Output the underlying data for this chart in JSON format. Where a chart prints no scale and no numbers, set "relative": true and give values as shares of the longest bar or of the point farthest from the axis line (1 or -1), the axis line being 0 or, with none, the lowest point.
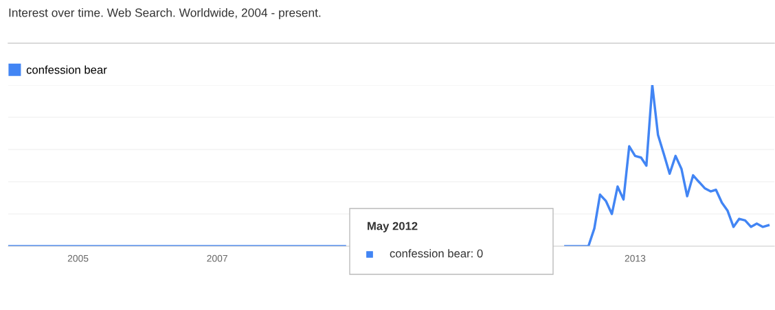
{
  "chart_data": {
    "type": "line",
    "title": "Interest over time. Web Search. Worldwide, 2004 - present.",
    "relative": true,
    "series": [
      {
        "name": "confession bear",
        "color": "#4285f4",
        "x": [
          "2004-01",
          "2005-01",
          "2006-01",
          "2007-01",
          "2008-01",
          "2008-11",
          "2010-06",
          "2012-01",
          "2012-05",
          "2012-06",
          "2012-07",
          "2012-08",
          "2012-09",
          "2012-10",
          "2012-11",
          "2012-12",
          "2013-01",
          "2013-02",
          "2013-03",
          "2013-04",
          "2013-05",
          "2013-06",
          "2013-07",
          "2013-08",
          "2013-09",
          "2013-10",
          "2013-11",
          "2013-12",
          "2014-01",
          "2014-02",
          "2014-03",
          "2014-04",
          "2014-05",
          "2014-06",
          "2014-07",
          "2014-08",
          "2014-09",
          "2014-10",
          "2014-11",
          "2014-12"
        ],
        "values": [
          0,
          0,
          0,
          0,
          0,
          0,
          null,
          0,
          0,
          0.11,
          0.32,
          0.28,
          0.2,
          0.37,
          0.29,
          0.62,
          0.56,
          0.55,
          0.5,
          1,
          0.69,
          0.57,
          0.45,
          0.56,
          0.48,
          0.31,
          0.44,
          0.4,
          0.36,
          0.34,
          0.35,
          0.27,
          0.22,
          0.12,
          0.17,
          0.16,
          0.12,
          0.14,
          0.12,
          0.13
        ]
      }
    ],
    "xlim": [
      "2004-01-01",
      "2015-01-01"
    ],
    "xticks": [
      {
        "value": "2005-01-01",
        "label": "2005"
      },
      {
        "value": "2007-01-01",
        "label": "2007"
      },
      {
        "value": "2013-01-01",
        "label": "2013"
      }
    ],
    "grid": "y",
    "legend": "top left",
    "marker": "none",
    "line_style": "solid",
    "annotations": [
      "May 2012",
      "confession bear: 0"
    ]
  }
}
